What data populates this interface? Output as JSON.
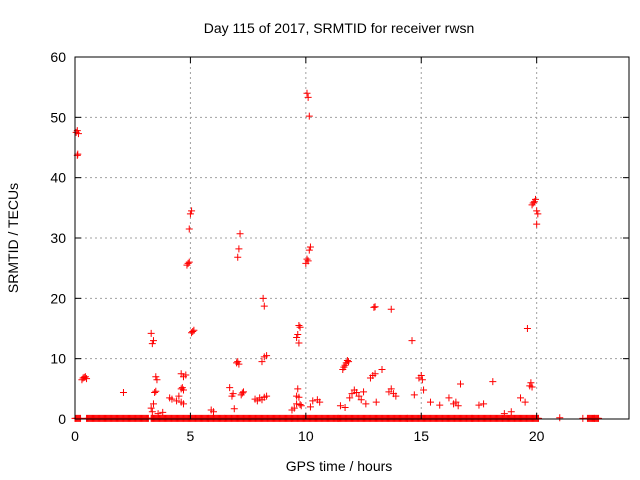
{
  "chart_data": {
    "type": "scatter",
    "title": "Day 115 of 2017, SRMTID for receiver rwsn",
    "xlabel": "GPS time / hours",
    "ylabel": "SRMTID / TECUs",
    "xlim": [
      0,
      24
    ],
    "ylim": [
      0,
      60
    ],
    "xticks": [
      0,
      5,
      10,
      15,
      20
    ],
    "yticks": [
      0,
      10,
      20,
      30,
      40,
      50,
      60
    ],
    "grid": true,
    "marker": "+",
    "marker_color": "#ff0000",
    "series": [
      {
        "points": [
          [
            0.05,
            47.5
          ],
          [
            0.1,
            47.8
          ],
          [
            0.15,
            47.3
          ],
          [
            0.1,
            43.7
          ],
          [
            0.12,
            43.9
          ],
          [
            0.3,
            6.5
          ],
          [
            0.35,
            6.8
          ],
          [
            0.4,
            6.9
          ],
          [
            0.45,
            7.0
          ],
          [
            0.5,
            6.7
          ],
          [
            2.1,
            4.4
          ],
          [
            3.3,
            14.2
          ],
          [
            3.35,
            12.5
          ],
          [
            3.4,
            13.0
          ],
          [
            3.5,
            7.0
          ],
          [
            3.55,
            6.5
          ],
          [
            3.5,
            4.6
          ],
          [
            3.45,
            4.4
          ],
          [
            3.4,
            2.5
          ],
          [
            3.3,
            1.8
          ],
          [
            3.35,
            1.2
          ],
          [
            3.6,
            0.9
          ],
          [
            3.8,
            1.1
          ],
          [
            4.1,
            3.5
          ],
          [
            4.2,
            3.3
          ],
          [
            4.4,
            3.0
          ],
          [
            4.5,
            3.8
          ],
          [
            4.6,
            2.8
          ],
          [
            4.7,
            2.5
          ],
          [
            4.6,
            5.0
          ],
          [
            4.65,
            5.2
          ],
          [
            4.7,
            4.8
          ],
          [
            4.6,
            7.5
          ],
          [
            4.7,
            7.0
          ],
          [
            4.8,
            7.3
          ],
          [
            4.85,
            25.5
          ],
          [
            4.9,
            25.8
          ],
          [
            4.95,
            26.0
          ],
          [
            4.95,
            31.5
          ],
          [
            5.0,
            34.0
          ],
          [
            5.05,
            34.5
          ],
          [
            5.05,
            14.3
          ],
          [
            5.1,
            14.5
          ],
          [
            5.15,
            14.7
          ],
          [
            5.9,
            1.5
          ],
          [
            6.0,
            1.2
          ],
          [
            6.7,
            5.2
          ],
          [
            6.8,
            3.8
          ],
          [
            6.85,
            4.2
          ],
          [
            6.9,
            1.7
          ],
          [
            7.0,
            9.3
          ],
          [
            7.05,
            9.5
          ],
          [
            7.1,
            9.1
          ],
          [
            7.05,
            26.8
          ],
          [
            7.1,
            28.2
          ],
          [
            7.15,
            30.7
          ],
          [
            7.2,
            4.0
          ],
          [
            7.25,
            4.3
          ],
          [
            7.3,
            4.5
          ],
          [
            7.8,
            3.3
          ],
          [
            7.9,
            3.0
          ],
          [
            8.0,
            3.5
          ],
          [
            8.1,
            3.2
          ],
          [
            8.2,
            3.6
          ],
          [
            8.3,
            3.8
          ],
          [
            8.1,
            9.5
          ],
          [
            8.2,
            10.3
          ],
          [
            8.3,
            10.5
          ],
          [
            8.15,
            20.0
          ],
          [
            8.2,
            18.7
          ],
          [
            9.4,
            1.5
          ],
          [
            9.5,
            1.8
          ],
          [
            9.6,
            2.5
          ],
          [
            9.6,
            3.8
          ],
          [
            9.7,
            3.6
          ],
          [
            9.65,
            5.0
          ],
          [
            9.75,
            2.4
          ],
          [
            9.8,
            2.2
          ],
          [
            9.6,
            13.5
          ],
          [
            9.65,
            14.0
          ],
          [
            9.7,
            12.6
          ],
          [
            9.7,
            15.5
          ],
          [
            9.75,
            15.2
          ],
          [
            10.0,
            25.8
          ],
          [
            10.05,
            26.5
          ],
          [
            10.1,
            26.2
          ],
          [
            10.15,
            28.0
          ],
          [
            10.2,
            28.5
          ],
          [
            10.05,
            54.0
          ],
          [
            10.1,
            53.3
          ],
          [
            10.15,
            50.2
          ],
          [
            10.3,
            3.0
          ],
          [
            10.5,
            3.2
          ],
          [
            10.6,
            2.8
          ],
          [
            10.2,
            2.0
          ],
          [
            11.5,
            2.2
          ],
          [
            11.7,
            1.9
          ],
          [
            11.6,
            8.2
          ],
          [
            11.65,
            8.6
          ],
          [
            11.7,
            8.9
          ],
          [
            11.75,
            9.3
          ],
          [
            11.8,
            9.7
          ],
          [
            11.85,
            9.5
          ],
          [
            11.9,
            3.5
          ],
          [
            12.0,
            4.2
          ],
          [
            12.1,
            4.8
          ],
          [
            12.2,
            4.4
          ],
          [
            12.3,
            3.8
          ],
          [
            12.4,
            3.2
          ],
          [
            12.5,
            4.5
          ],
          [
            12.6,
            2.5
          ],
          [
            12.8,
            6.8
          ],
          [
            12.9,
            7.2
          ],
          [
            13.0,
            7.5
          ],
          [
            12.95,
            18.5
          ],
          [
            13.0,
            18.6
          ],
          [
            13.05,
            2.8
          ],
          [
            13.3,
            8.2
          ],
          [
            13.6,
            4.5
          ],
          [
            13.7,
            5.0
          ],
          [
            13.8,
            4.2
          ],
          [
            13.7,
            18.2
          ],
          [
            13.9,
            3.8
          ],
          [
            14.6,
            13.0
          ],
          [
            14.7,
            4.0
          ],
          [
            14.9,
            6.8
          ],
          [
            15.0,
            7.2
          ],
          [
            15.05,
            6.5
          ],
          [
            15.1,
            4.8
          ],
          [
            15.4,
            2.8
          ],
          [
            15.8,
            2.3
          ],
          [
            16.2,
            3.5
          ],
          [
            16.4,
            2.5
          ],
          [
            16.5,
            2.8
          ],
          [
            16.6,
            2.2
          ],
          [
            16.7,
            5.8
          ],
          [
            17.5,
            2.3
          ],
          [
            17.7,
            2.5
          ],
          [
            18.1,
            6.2
          ],
          [
            18.6,
            0.9
          ],
          [
            18.9,
            1.2
          ],
          [
            19.3,
            3.5
          ],
          [
            19.5,
            2.8
          ],
          [
            19.6,
            15.0
          ],
          [
            19.7,
            5.5
          ],
          [
            19.75,
            6.0
          ],
          [
            19.8,
            5.3
          ],
          [
            19.8,
            35.5
          ],
          [
            19.85,
            35.8
          ],
          [
            19.9,
            36.0
          ],
          [
            19.95,
            36.4
          ],
          [
            20.0,
            34.5
          ],
          [
            20.05,
            34.0
          ],
          [
            20.0,
            32.3
          ],
          [
            21.0,
            0.2
          ],
          [
            22.0,
            0.1
          ],
          [
            22.5,
            0.1
          ]
        ]
      }
    ],
    "baseline": [
      {
        "from": 0.0,
        "to": 0.25,
        "y": 0.1
      },
      {
        "from": 0.5,
        "to": 3.2,
        "y": 0.1
      },
      {
        "from": 3.3,
        "to": 5.8,
        "y": 0.1
      },
      {
        "from": 5.8,
        "to": 6.5,
        "y": 0.1
      },
      {
        "from": 6.5,
        "to": 9.4,
        "y": 0.1
      },
      {
        "from": 9.4,
        "to": 11.4,
        "y": 0.1
      },
      {
        "from": 11.4,
        "to": 14.4,
        "y": 0.1
      },
      {
        "from": 14.4,
        "to": 17.2,
        "y": 0.1
      },
      {
        "from": 17.2,
        "to": 20.1,
        "y": 0.1
      },
      {
        "from": 22.2,
        "to": 22.7,
        "y": 0.1
      }
    ]
  }
}
